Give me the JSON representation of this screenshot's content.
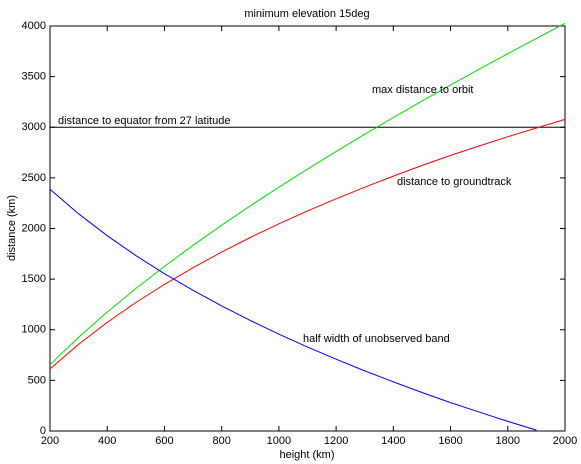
{
  "chart_data": {
    "type": "line",
    "title": "minimum elevation 15deg",
    "x_label": "height (km)",
    "y_label": "distance (km)",
    "x": [
      200,
      300,
      400,
      500,
      600,
      700,
      800,
      900,
      1000,
      1100,
      1200,
      1300,
      1400,
      1500,
      1600,
      1700,
      1800,
      1900,
      2000
    ],
    "series": [
      {
        "color": "#00e000",
        "values": [
          655,
          926,
          1175,
          1407,
          1626,
          1834,
          2033,
          2224,
          2408,
          2587,
          2761,
          2931,
          3096,
          3259,
          3417,
          3573,
          3727,
          3877,
          4026
        ]
      },
      {
        "color": "#ff0000",
        "values": [
          614,
          857,
          1073,
          1269,
          1448,
          1613,
          1767,
          1911,
          2046,
          2173,
          2293,
          2408,
          2517,
          2622,
          2722,
          2815,
          2907,
          2993,
          3078
        ]
      },
      {
        "color": "#0000ff",
        "values": [
          2388,
          2145,
          1929,
          1733,
          1554,
          1389,
          1235,
          1092,
          956,
          829,
          709,
          594,
          485,
          380,
          280,
          187,
          95,
          9,
          null
        ]
      }
    ],
    "reference_line": {
      "y": 3000,
      "color": "#000000"
    },
    "annotations": [
      "max distance to orbit",
      "distance to equator from 27 latitude",
      "distance to groundtrack",
      "half width of unobserved band"
    ],
    "xlim": [
      200,
      2000
    ],
    "ylim": [
      0,
      4000
    ],
    "xticks": [
      200,
      400,
      600,
      800,
      1000,
      1200,
      1400,
      1600,
      1800,
      2000
    ],
    "yticks": [
      0,
      500,
      1000,
      1500,
      2000,
      2500,
      3000,
      3500,
      4000
    ]
  }
}
